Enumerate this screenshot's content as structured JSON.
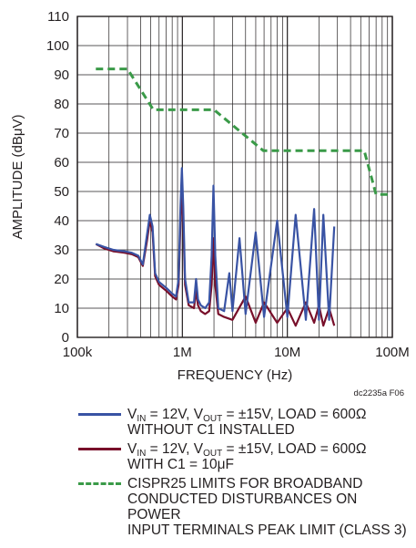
{
  "chart_data": {
    "type": "line",
    "xscale": "log",
    "xlim": [
      100000,
      100000000
    ],
    "ylim": [
      0,
      110
    ],
    "xlabel": "FREQUENCY (Hz)",
    "ylabel": "AMPLITUDE (dBμV)",
    "x_ticks": [
      {
        "value": 100000,
        "label": "100k"
      },
      {
        "value": 1000000,
        "label": "1M"
      },
      {
        "value": 10000000,
        "label": "10M"
      },
      {
        "value": 100000000,
        "label": "100M"
      }
    ],
    "y_ticks": [
      0,
      10,
      20,
      30,
      40,
      50,
      60,
      70,
      80,
      90,
      100,
      110
    ],
    "grid": true,
    "note": "dc2235a F06",
    "series": [
      {
        "name": "VIN = 12V, VOUT = ±15V, LOAD = 600Ω WITHOUT C1 INSTALLED",
        "color": "#3953a4",
        "style": "solid",
        "x": [
          150000,
          180000,
          220000,
          280000,
          330000,
          380000,
          420000,
          460000,
          490000,
          520000,
          550000,
          600000,
          700000,
          800000,
          870000,
          920000,
          960000,
          990000,
          1020000,
          1060000,
          1150000,
          1290000,
          1350000,
          1410000,
          1500000,
          1650000,
          1800000,
          1900000,
          1980000,
          2060000,
          2200000,
          2500000,
          2800000,
          3000000,
          3500000,
          4000000,
          5000000,
          6000000,
          8000000,
          10000000,
          12000000,
          15000000,
          18000000,
          20000000,
          22000000,
          25000000,
          28000000
        ],
        "y": [
          32,
          31,
          30,
          29.5,
          29,
          28,
          25,
          35,
          42,
          38,
          22,
          19,
          17,
          15,
          14,
          20,
          45,
          58,
          45,
          20,
          12,
          12,
          20,
          13,
          11,
          10,
          12,
          28,
          52,
          28,
          10,
          9,
          22,
          9,
          34,
          8,
          36,
          7,
          40,
          7,
          42,
          6,
          44,
          6,
          42,
          6,
          38
        ]
      },
      {
        "name": "VIN = 12V, VOUT = ±15V, LOAD = 600Ω WITH C1 = 10μF",
        "color": "#780f2a",
        "style": "solid",
        "x": [
          150000,
          180000,
          220000,
          280000,
          330000,
          380000,
          420000,
          460000,
          490000,
          520000,
          550000,
          600000,
          700000,
          800000,
          870000,
          920000,
          960000,
          990000,
          1020000,
          1060000,
          1150000,
          1290000,
          1350000,
          1410000,
          1500000,
          1650000,
          1800000,
          1900000,
          1980000,
          2060000,
          2200000,
          2500000,
          3000000,
          4000000,
          5000000,
          6000000,
          8000000,
          10000000,
          12000000,
          15000000,
          18000000,
          20000000,
          22000000,
          25000000,
          28000000
        ],
        "y": [
          32,
          30.5,
          29.5,
          29,
          28.5,
          27.5,
          24.5,
          33,
          40,
          36,
          21,
          18,
          16,
          14,
          13,
          18,
          40,
          50,
          40,
          18,
          11,
          10,
          16,
          11,
          9,
          8,
          9,
          18,
          34,
          18,
          8,
          7,
          6,
          14,
          5,
          12,
          5,
          10,
          4,
          12,
          5,
          11,
          4,
          10,
          4
        ]
      },
      {
        "name": "CISPR25 LIMITS FOR BROADBAND CONDUCTED DISTURBANCES ON POWER INPUT TERMINALS PEAK LIMIT (CLASS 3)",
        "color": "#3a9a48",
        "style": "dashed",
        "x": [
          150000,
          300000,
          530000,
          2000000,
          5900000,
          54000000,
          70000000,
          100000000
        ],
        "y": [
          92,
          92,
          78,
          78,
          64,
          64,
          49,
          49
        ]
      }
    ]
  },
  "legend": {
    "items": [
      {
        "line1_pre": "V",
        "line1_sub1": "IN",
        "line1_mid": " = 12V, V",
        "line1_sub2": "OUT",
        "line1_post": " = ±15V, LOAD = 600Ω",
        "line2": "WITHOUT C1 INSTALLED",
        "color": "#3953a4"
      },
      {
        "line1_pre": "V",
        "line1_sub1": "IN",
        "line1_mid": " = 12V, V",
        "line1_sub2": "OUT",
        "line1_post": " = ±15V, LOAD = 600Ω",
        "line2": "WITH C1 = 10μF",
        "color": "#780f2a"
      },
      {
        "line1": "CISPR25 LIMITS FOR BROADBAND",
        "line2": "CONDUCTED DISTURBANCES ON POWER",
        "line3": "INPUT TERMINALS PEAK LIMIT (CLASS 3)",
        "color": "#3a9a48"
      }
    ]
  }
}
